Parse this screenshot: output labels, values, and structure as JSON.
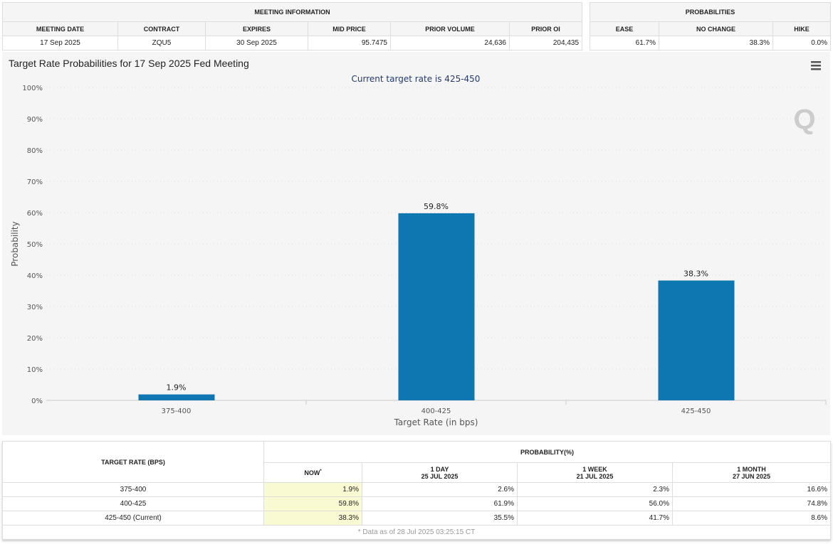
{
  "meeting_info": {
    "title": "MEETING INFORMATION",
    "headers": [
      "MEETING DATE",
      "CONTRACT",
      "EXPIRES",
      "MID PRICE",
      "PRIOR VOLUME",
      "PRIOR OI"
    ],
    "values": [
      "17 Sep 2025",
      "ZQU5",
      "30 Sep 2025",
      "95.7475",
      "24,636",
      "204,435"
    ]
  },
  "probabilities": {
    "title": "PROBABILITIES",
    "headers": [
      "EASE",
      "NO CHANGE",
      "HIKE"
    ],
    "values": [
      "61.7%",
      "38.3%",
      "0.0%"
    ]
  },
  "chart_data": {
    "type": "bar",
    "title": "Target Rate Probabilities for 17 Sep 2025 Fed Meeting",
    "subtitle": "Current target rate is 425-450",
    "categories": [
      "375-400",
      "400-425",
      "425-450"
    ],
    "values": [
      1.9,
      59.8,
      38.3
    ],
    "data_labels": [
      "1.9%",
      "59.8%",
      "38.3%"
    ],
    "xlabel": "Target Rate (in bps)",
    "ylabel": "Probability",
    "ylim": [
      0,
      100
    ],
    "yticks": [
      "0%",
      "10%",
      "20%",
      "30%",
      "40%",
      "50%",
      "60%",
      "70%",
      "80%",
      "90%",
      "100%"
    ],
    "grid": true,
    "color": "#0e77b1"
  },
  "history": {
    "col1": "TARGET RATE (BPS)",
    "group": "PROBABILITY(%)",
    "headers": [
      {
        "l1": "NOW",
        "l2": ""
      },
      {
        "l1": "1 DAY",
        "l2": "25 JUL 2025"
      },
      {
        "l1": "1 WEEK",
        "l2": "21 JUL 2025"
      },
      {
        "l1": "1 MONTH",
        "l2": "27 JUN 2025"
      }
    ],
    "now_mark": "*",
    "rows": [
      {
        "rate": "375-400",
        "vals": [
          "1.9%",
          "2.6%",
          "2.3%",
          "16.6%"
        ]
      },
      {
        "rate": "400-425",
        "vals": [
          "59.8%",
          "61.9%",
          "56.0%",
          "74.8%"
        ]
      },
      {
        "rate": "425-450 (Current)",
        "vals": [
          "38.3%",
          "35.5%",
          "41.7%",
          "8.6%"
        ]
      }
    ],
    "footnote": "* Data as of 28 Jul 2025 03:25:15 CT"
  }
}
